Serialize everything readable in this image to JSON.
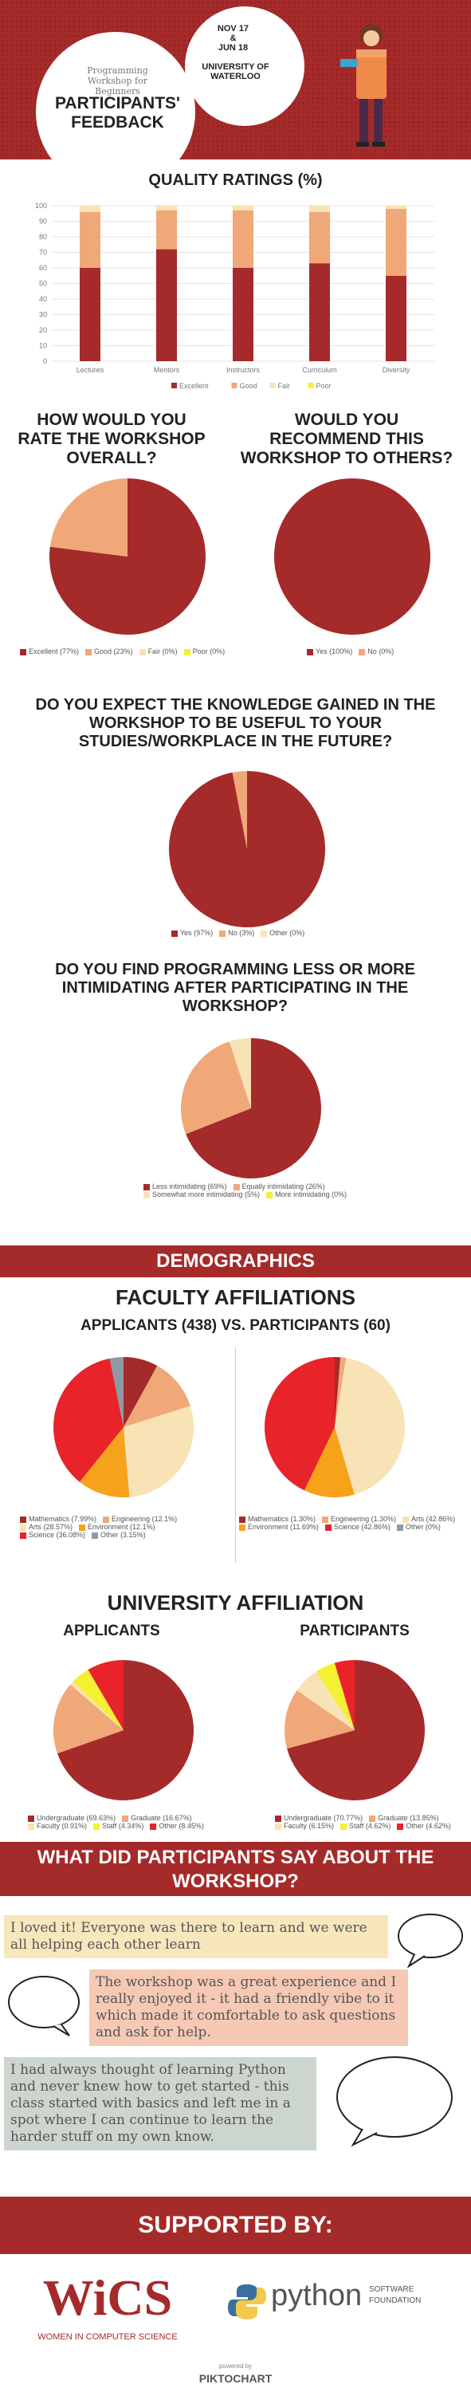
{
  "header": {
    "subtitle": "Programming Workshop for Beginners",
    "title_line1": "PARTICIPANTS'",
    "title_line2": "FEEDBACK",
    "date1": "NOV 17",
    "amp": "&",
    "date2": "JUN 18",
    "uni1": "UNIVERSITY OF",
    "uni2": "WATERLOO"
  },
  "colors": {
    "maroon": "#a52a2a",
    "peach": "#f0a878",
    "pale": "#f7e3b6",
    "yellow": "#f5f032",
    "red": "#e8232a",
    "orange": "#f7a21b",
    "gray": "#8e9aa3"
  },
  "sections": {
    "quality": "QUALITY RATINGS (%)",
    "overall": "HOW WOULD YOU RATE THE WORKSHOP OVERALL?",
    "recommend": "WOULD YOU RECOMMEND THIS WORKSHOP TO OTHERS?",
    "useful": "DO YOU EXPECT THE KNOWLEDGE GAINED IN THE WORKSHOP TO BE USEFUL TO YOUR STUDIES/WORKPLACE IN THE FUTURE?",
    "intimidating": "DO YOU FIND PROGRAMMING LESS OR MORE INTIMIDATING AFTER PARTICIPATING IN THE WORKSHOP?",
    "demographics": "DEMOGRAPHICS",
    "faculty": "FACULTY AFFILIATIONS",
    "faculty_sub": "APPLICANTS (438) VS. PARTICIPANTS (60)",
    "university": "UNIVERSITY AFFILIATION",
    "applicants": "APPLICANTS",
    "participants": "PARTICIPANTS",
    "say": "WHAT DID PARTICIPANTS SAY ABOUT THE WORKSHOP?",
    "supported": "SUPPORTED BY:"
  },
  "quotes": [
    "I loved it! Everyone was there to learn and we were all helping each other learn",
    "The workshop was a great experience and I really enjoyed it - it had a friendly vibe to it which made it comfortable to ask questions and ask for help.",
    "I had always thought of learning Python and never knew how to get started - this class started with basics and left me in a spot where I can continue to learn the harder stuff on my own know."
  ],
  "sponsors": {
    "wics_big": "WiCS",
    "wics_small": "WOMEN IN COMPUTER SCIENCE",
    "python": "python",
    "psf1": "SOFTWARE",
    "psf2": "FOUNDATION",
    "powered": "powered by",
    "piktochart": "PIKTOCHART"
  },
  "chart_data": [
    {
      "type": "bar",
      "stacked": true,
      "categories": [
        "Lectures",
        "Mentors",
        "Instructors",
        "Curriculum",
        "Diversity"
      ],
      "series": [
        {
          "name": "Excellent",
          "color": "#a52a2a",
          "values": [
            60,
            72,
            60,
            63,
            55
          ]
        },
        {
          "name": "Good",
          "color": "#f0a878",
          "values": [
            36,
            25,
            37,
            33,
            43
          ]
        },
        {
          "name": "Fair",
          "color": "#f7e3b6",
          "values": [
            4,
            3,
            3,
            4,
            2
          ]
        },
        {
          "name": "Poor",
          "color": "#f5f032",
          "values": [
            0,
            0,
            0,
            0,
            0
          ]
        }
      ],
      "ylim": [
        0,
        100
      ],
      "yticks": [
        0,
        10,
        20,
        30,
        40,
        50,
        60,
        70,
        80,
        90,
        100
      ],
      "legend": "bottom",
      "grid": true
    },
    {
      "type": "pie",
      "slices": [
        {
          "label": "Excellent (77%)",
          "value": 77,
          "color": "#a52a2a"
        },
        {
          "label": "Good (23%)",
          "value": 23,
          "color": "#f0a878"
        },
        {
          "label": "Fair (0%)",
          "value": 0,
          "color": "#f7e3b6"
        },
        {
          "label": "Poor (0%)",
          "value": 0,
          "color": "#f5f032"
        }
      ]
    },
    {
      "type": "pie",
      "slices": [
        {
          "label": "Yes (100%)",
          "value": 100,
          "color": "#a52a2a"
        },
        {
          "label": "No (0%)",
          "value": 0,
          "color": "#f0a878"
        }
      ]
    },
    {
      "type": "pie",
      "slices": [
        {
          "label": "Yes (97%)",
          "value": 97,
          "color": "#a52a2a"
        },
        {
          "label": "No (3%)",
          "value": 3,
          "color": "#f0a878"
        },
        {
          "label": "Other (0%)",
          "value": 0,
          "color": "#f7e3b6"
        }
      ]
    },
    {
      "type": "pie",
      "slices": [
        {
          "label": "Less intimidating (69%)",
          "value": 69,
          "color": "#a52a2a"
        },
        {
          "label": "Equally intimidating (26%)",
          "value": 26,
          "color": "#f0a878"
        },
        {
          "label": "Somewhat more intimidating (5%)",
          "value": 5,
          "color": "#f7e3b6"
        },
        {
          "label": "More intimidating (0%)",
          "value": 0,
          "color": "#f5f032"
        }
      ]
    },
    {
      "type": "pie",
      "slices": [
        {
          "label": "Mathematics (7.99%)",
          "value": 7.99,
          "color": "#a52a2a"
        },
        {
          "label": "Engineering (12.1%)",
          "value": 12.1,
          "color": "#f0a878"
        },
        {
          "label": "Arts (28.57%)",
          "value": 28.57,
          "color": "#f7e3b6"
        },
        {
          "label": "Environment (12.1%)",
          "value": 12.1,
          "color": "#f7a21b"
        },
        {
          "label": "Science (36.08%)",
          "value": 36.08,
          "color": "#e8232a"
        },
        {
          "label": "Other (3.15%)",
          "value": 3.15,
          "color": "#8e9aa3"
        }
      ]
    },
    {
      "type": "pie",
      "slices": [
        {
          "label": "Mathematics (1.30%)",
          "value": 1.3,
          "color": "#a52a2a"
        },
        {
          "label": "Engineering (1.30%)",
          "value": 1.3,
          "color": "#f0a878"
        },
        {
          "label": "Arts (42.86%)",
          "value": 42.86,
          "color": "#f7e3b6"
        },
        {
          "label": "Environment (11.69%)",
          "value": 11.69,
          "color": "#f7a21b"
        },
        {
          "label": "Science (42.86%)",
          "value": 42.86,
          "color": "#e8232a"
        },
        {
          "label": "Other (0%)",
          "value": 0,
          "color": "#8e9aa3"
        }
      ]
    },
    {
      "type": "pie",
      "slices": [
        {
          "label": "Undergraduate (69.63%)",
          "value": 69.63,
          "color": "#a52a2a"
        },
        {
          "label": "Graduate (16.67%)",
          "value": 16.67,
          "color": "#f0a878"
        },
        {
          "label": "Faculty (0.91%)",
          "value": 0.91,
          "color": "#f7e3b6"
        },
        {
          "label": "Staff (4.34%)",
          "value": 4.34,
          "color": "#f5f032"
        },
        {
          "label": "Other (8.45%)",
          "value": 8.45,
          "color": "#e8232a"
        }
      ]
    },
    {
      "type": "pie",
      "slices": [
        {
          "label": "Undergraduate (70.77%)",
          "value": 70.77,
          "color": "#a52a2a"
        },
        {
          "label": "Graduate (13.85%)",
          "value": 13.85,
          "color": "#f0a878"
        },
        {
          "label": "Faculty (6.15%)",
          "value": 6.15,
          "color": "#f7e3b6"
        },
        {
          "label": "Staff (4.62%)",
          "value": 4.62,
          "color": "#f5f032"
        },
        {
          "label": "Other (4.62%)",
          "value": 4.62,
          "color": "#e8232a"
        }
      ]
    }
  ]
}
